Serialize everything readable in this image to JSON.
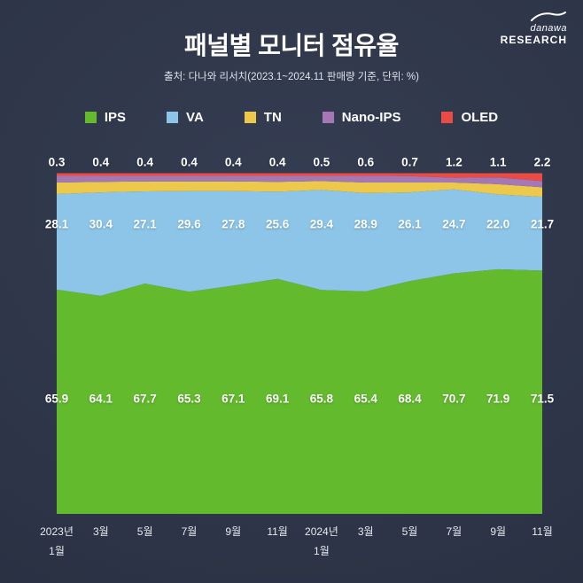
{
  "logo": {
    "brand": "danawa",
    "sub": "RESEARCH"
  },
  "header": {
    "title": "패널별 모니터 점유율",
    "subtitle": "출처: 다나와 리서치(2023.1~2024.11 판매량 기준, 단위: %)"
  },
  "colors": {
    "background": "#2d3447",
    "ips": "#63ba2d",
    "va": "#8cc5e8",
    "tn": "#ecc84b",
    "nano_ips": "#a478b5",
    "oled": "#ea4b44",
    "label_text": "#ffffff",
    "axis_text": "#e6e9ee"
  },
  "legend": [
    {
      "label": "IPS",
      "color": "#63ba2d"
    },
    {
      "label": "VA",
      "color": "#8cc5e8"
    },
    {
      "label": "TN",
      "color": "#ecc84b"
    },
    {
      "label": "Nano-IPS",
      "color": "#a478b5"
    },
    {
      "label": "OLED",
      "color": "#ea4b44"
    }
  ],
  "chart_data": {
    "type": "area",
    "stacked": true,
    "unit": "%",
    "title": "패널별 모니터 점유율",
    "ylim": [
      0,
      100
    ],
    "legend_position": "top",
    "grid": false,
    "categories": [
      "2023년 1월",
      "3월",
      "5월",
      "7월",
      "9월",
      "11월",
      "2024년 1월",
      "3월",
      "5월",
      "7월",
      "9월",
      "11월"
    ],
    "x_tick_labels": [
      [
        "2023년",
        "1월"
      ],
      [
        "3월"
      ],
      [
        "5월"
      ],
      [
        "7월"
      ],
      [
        "9월"
      ],
      [
        "11월"
      ],
      [
        "2024년",
        "1월"
      ],
      [
        "3월"
      ],
      [
        "5월"
      ],
      [
        "7월"
      ],
      [
        "9월"
      ],
      [
        "11월"
      ]
    ],
    "series": [
      {
        "name": "IPS",
        "color": "#63ba2d",
        "labeled": true,
        "values": [
          65.9,
          64.1,
          67.7,
          65.3,
          67.1,
          69.1,
          65.8,
          65.4,
          68.4,
          70.7,
          71.9,
          71.5
        ]
      },
      {
        "name": "VA",
        "color": "#8cc5e8",
        "labeled": true,
        "values": [
          28.1,
          30.4,
          27.1,
          29.6,
          27.8,
          25.6,
          29.4,
          28.9,
          26.1,
          24.7,
          22.0,
          21.7
        ]
      },
      {
        "name": "TN",
        "color": "#ecc84b",
        "labeled": false,
        "estimated": true,
        "values": [
          3.4,
          3.1,
          2.9,
          2.8,
          2.8,
          2.9,
          2.6,
          3.1,
          2.9,
          2.0,
          3.0,
          2.8
        ]
      },
      {
        "name": "Nano-IPS",
        "color": "#a478b5",
        "labeled": false,
        "estimated": true,
        "values": [
          2.3,
          2.0,
          1.9,
          1.9,
          1.9,
          2.0,
          1.7,
          2.0,
          1.9,
          1.4,
          2.0,
          1.8
        ]
      },
      {
        "name": "OLED",
        "color": "#ea4b44",
        "labeled": true,
        "values": [
          0.3,
          0.4,
          0.4,
          0.4,
          0.4,
          0.4,
          0.5,
          0.6,
          0.7,
          1.2,
          1.1,
          2.2
        ]
      }
    ]
  }
}
